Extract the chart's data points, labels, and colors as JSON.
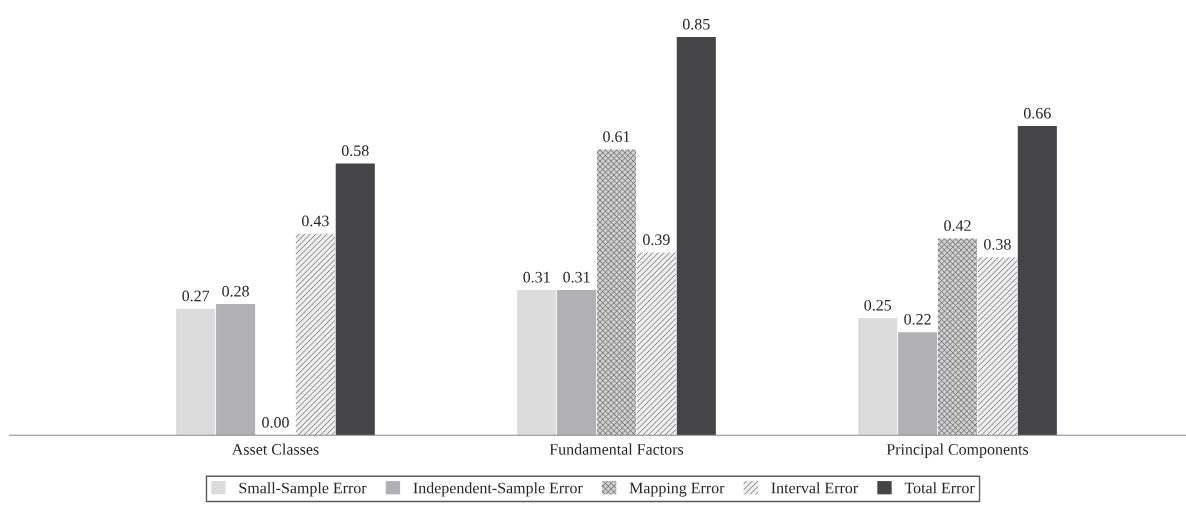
{
  "chart_data": {
    "type": "bar",
    "categories": [
      "Asset Classes",
      "Fundamental Factors",
      "Principal Components"
    ],
    "series": [
      {
        "name": "Small-Sample Error",
        "color": "#dcdcdc",
        "values": [
          0.27,
          0.31,
          0.25
        ],
        "value_labels": [
          "0.27",
          "0.31",
          "0.25"
        ]
      },
      {
        "name": "Independent-Sample Error",
        "color": "#b1b1b3",
        "values": [
          0.28,
          0.31,
          0.22
        ],
        "value_labels": [
          "0.28",
          "0.31",
          "0.22"
        ]
      },
      {
        "name": "Mapping Error",
        "color": "#d0d0d0",
        "values": [
          0.0,
          0.61,
          0.42
        ],
        "value_labels": [
          "0.00",
          "0.61",
          "0.42"
        ]
      },
      {
        "name": "Interval Error",
        "color": "#eeeeee",
        "values": [
          0.43,
          0.39,
          0.38
        ],
        "value_labels": [
          "0.43",
          "0.39",
          "0.38"
        ]
      },
      {
        "name": "Total Error",
        "color": "#454547",
        "values": [
          0.58,
          0.85,
          0.66
        ],
        "value_labels": [
          "0.58",
          "0.85",
          "0.66"
        ]
      }
    ],
    "legend": "bottom",
    "grid": false
  }
}
